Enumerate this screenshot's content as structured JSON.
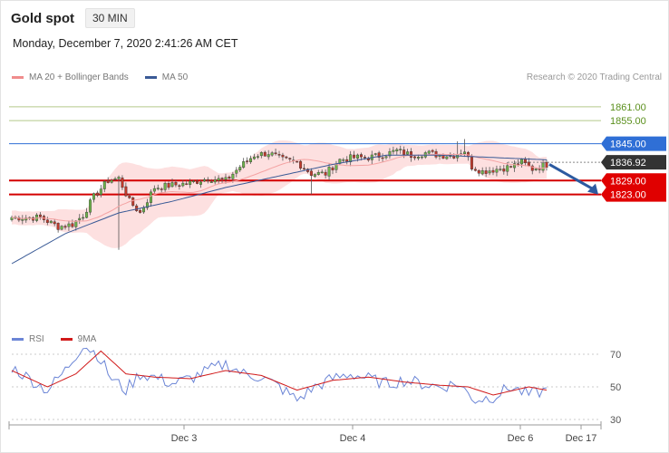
{
  "header": {
    "title": "Gold spot",
    "timeframe": "30 MIN"
  },
  "timestamp": "Monday, December 7, 2020 2:41:26 AM CET",
  "credit": "Research © 2020 Trading Central",
  "main_legend": [
    {
      "label": "MA 20 + Bollinger Bands",
      "color": "#f08c8c"
    },
    {
      "label": "MA 50",
      "color": "#3a5a96"
    }
  ],
  "rsi_legend": [
    {
      "label": "RSI",
      "color": "#6b85d6"
    },
    {
      "label": "9MA",
      "color": "#d11a1a"
    }
  ],
  "chart_data": [
    {
      "type": "candlestick",
      "ylim": [
        1760,
        1868
      ],
      "price_levels": [
        {
          "label": "1861.00",
          "value": 1861.0,
          "style": "resistance-green"
        },
        {
          "label": "1855.00",
          "value": 1855.0,
          "style": "resistance-green"
        },
        {
          "label": "1845.00",
          "value": 1845.0,
          "style": "blue"
        },
        {
          "label": "1836.92",
          "value": 1836.92,
          "style": "current"
        },
        {
          "label": "1829.00",
          "value": 1829.0,
          "style": "red"
        },
        {
          "label": "1823.00",
          "value": 1823.0,
          "style": "red"
        }
      ],
      "forecast_arrow": {
        "from": 1836,
        "to": 1823
      },
      "close_anchors": [
        {
          "i": 0,
          "v": 1813
        },
        {
          "i": 8,
          "v": 1813
        },
        {
          "i": 13,
          "v": 1809
        },
        {
          "i": 17,
          "v": 1810
        },
        {
          "i": 20,
          "v": 1814
        },
        {
          "i": 23,
          "v": 1822
        },
        {
          "i": 27,
          "v": 1829
        },
        {
          "i": 30,
          "v": 1830
        },
        {
          "i": 33,
          "v": 1820
        },
        {
          "i": 36,
          "v": 1815
        },
        {
          "i": 40,
          "v": 1826
        },
        {
          "i": 45,
          "v": 1827
        },
        {
          "i": 50,
          "v": 1828
        },
        {
          "i": 55,
          "v": 1830
        },
        {
          "i": 60,
          "v": 1829
        },
        {
          "i": 64,
          "v": 1835
        },
        {
          "i": 68,
          "v": 1840
        },
        {
          "i": 72,
          "v": 1841
        },
        {
          "i": 76,
          "v": 1838
        },
        {
          "i": 80,
          "v": 1837
        },
        {
          "i": 84,
          "v": 1832
        },
        {
          "i": 88,
          "v": 1832
        },
        {
          "i": 92,
          "v": 1838
        },
        {
          "i": 96,
          "v": 1839
        },
        {
          "i": 100,
          "v": 1839
        },
        {
          "i": 104,
          "v": 1840
        },
        {
          "i": 108,
          "v": 1842
        },
        {
          "i": 112,
          "v": 1840
        },
        {
          "i": 116,
          "v": 1841
        },
        {
          "i": 120,
          "v": 1840
        },
        {
          "i": 124,
          "v": 1840
        },
        {
          "i": 127,
          "v": 1842
        },
        {
          "i": 129,
          "v": 1835
        },
        {
          "i": 132,
          "v": 1833
        },
        {
          "i": 136,
          "v": 1834
        },
        {
          "i": 140,
          "v": 1835
        },
        {
          "i": 143,
          "v": 1837
        },
        {
          "i": 146,
          "v": 1834
        },
        {
          "i": 150,
          "v": 1836
        }
      ],
      "ma50_anchors": [
        {
          "i": 0,
          "v": 1793
        },
        {
          "i": 15,
          "v": 1806
        },
        {
          "i": 30,
          "v": 1815
        },
        {
          "i": 45,
          "v": 1820
        },
        {
          "i": 60,
          "v": 1826
        },
        {
          "i": 75,
          "v": 1831
        },
        {
          "i": 90,
          "v": 1836
        },
        {
          "i": 105,
          "v": 1840
        },
        {
          "i": 120,
          "v": 1840
        },
        {
          "i": 135,
          "v": 1839
        },
        {
          "i": 150,
          "v": 1838
        }
      ]
    },
    {
      "type": "line",
      "name": "RSI",
      "ylim": [
        20,
        80
      ],
      "ticks": [
        "70",
        "50",
        "30"
      ],
      "x_labels": [
        "Dec 3",
        "Dec 4",
        "Dec 6",
        "Dec 17"
      ],
      "rsi_anchors": [
        {
          "i": 0,
          "v": 62
        },
        {
          "i": 5,
          "v": 55
        },
        {
          "i": 10,
          "v": 48
        },
        {
          "i": 15,
          "v": 60
        },
        {
          "i": 20,
          "v": 76
        },
        {
          "i": 24,
          "v": 70
        },
        {
          "i": 28,
          "v": 55
        },
        {
          "i": 32,
          "v": 48
        },
        {
          "i": 36,
          "v": 58
        },
        {
          "i": 40,
          "v": 56
        },
        {
          "i": 45,
          "v": 52
        },
        {
          "i": 50,
          "v": 55
        },
        {
          "i": 55,
          "v": 60
        },
        {
          "i": 60,
          "v": 64
        },
        {
          "i": 65,
          "v": 58
        },
        {
          "i": 70,
          "v": 56
        },
        {
          "i": 75,
          "v": 50
        },
        {
          "i": 80,
          "v": 42
        },
        {
          "i": 85,
          "v": 50
        },
        {
          "i": 90,
          "v": 55
        },
        {
          "i": 95,
          "v": 58
        },
        {
          "i": 100,
          "v": 55
        },
        {
          "i": 105,
          "v": 52
        },
        {
          "i": 110,
          "v": 54
        },
        {
          "i": 115,
          "v": 52
        },
        {
          "i": 120,
          "v": 50
        },
        {
          "i": 125,
          "v": 52
        },
        {
          "i": 130,
          "v": 42
        },
        {
          "i": 135,
          "v": 44
        },
        {
          "i": 140,
          "v": 50
        },
        {
          "i": 145,
          "v": 45
        },
        {
          "i": 150,
          "v": 48
        }
      ],
      "ma9_anchors": [
        {
          "i": 0,
          "v": 60
        },
        {
          "i": 10,
          "v": 50
        },
        {
          "i": 18,
          "v": 58
        },
        {
          "i": 25,
          "v": 72
        },
        {
          "i": 32,
          "v": 58
        },
        {
          "i": 40,
          "v": 56
        },
        {
          "i": 50,
          "v": 55
        },
        {
          "i": 60,
          "v": 60
        },
        {
          "i": 70,
          "v": 57
        },
        {
          "i": 80,
          "v": 48
        },
        {
          "i": 90,
          "v": 54
        },
        {
          "i": 100,
          "v": 56
        },
        {
          "i": 110,
          "v": 53
        },
        {
          "i": 120,
          "v": 51
        },
        {
          "i": 128,
          "v": 50
        },
        {
          "i": 135,
          "v": 45
        },
        {
          "i": 145,
          "v": 50
        },
        {
          "i": 150,
          "v": 48
        }
      ]
    }
  ]
}
